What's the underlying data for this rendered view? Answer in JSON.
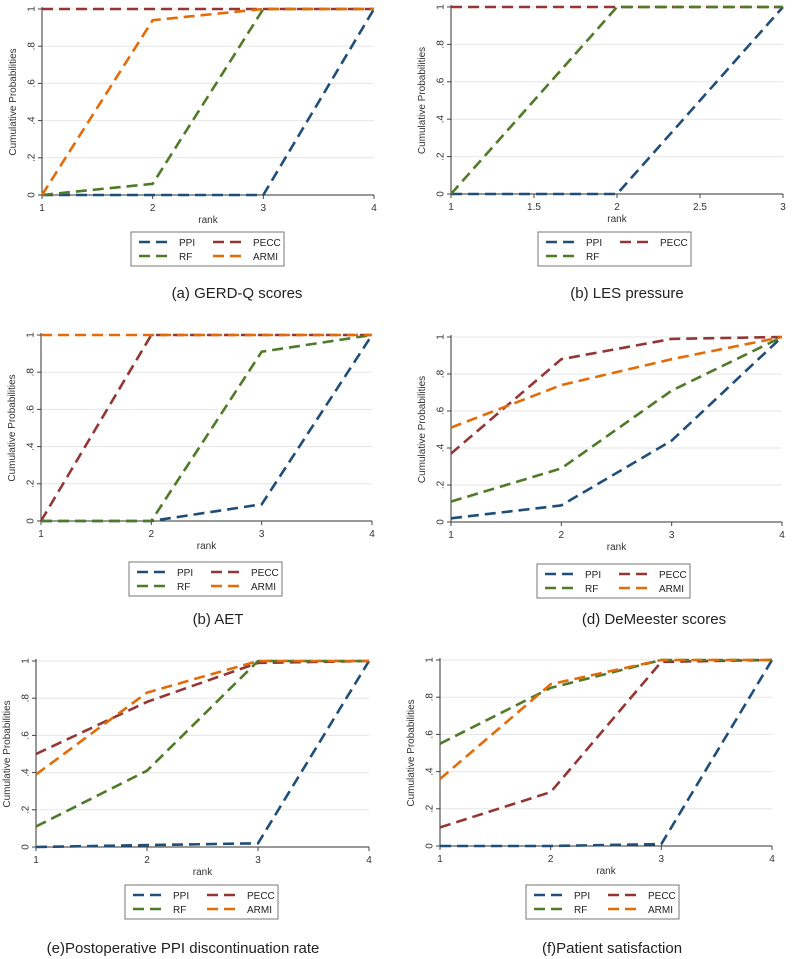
{
  "figure": {
    "legend_series": [
      "PPI",
      "PECC",
      "RF",
      "ARMI"
    ]
  },
  "chart_data": [
    {
      "type": "line",
      "caption": "(a)  GERD-Q scores",
      "xlabel": "rank",
      "ylabel": "Cumulative Probabilities",
      "x": [
        1,
        2,
        3,
        4
      ],
      "xticks": [
        "1",
        "2",
        "3",
        "4"
      ],
      "xlim": [
        1,
        4
      ],
      "ylim": [
        0,
        1
      ],
      "yticks": [
        "0",
        ".2",
        ".4",
        ".6",
        ".8",
        "1"
      ],
      "series": [
        {
          "name": "PPI",
          "color": "#1f4e79",
          "values": [
            0,
            0,
            0,
            1
          ]
        },
        {
          "name": "PECC",
          "color": "#943634",
          "values": [
            1,
            1,
            1,
            1
          ]
        },
        {
          "name": "RF",
          "color": "#4f7a28",
          "values": [
            0,
            0.06,
            1,
            1
          ]
        },
        {
          "name": "ARMI",
          "color": "#e36c09",
          "values": [
            0,
            0.94,
            1,
            1
          ]
        }
      ],
      "legend": [
        "PPI",
        "PECC",
        "RF",
        "ARMI"
      ]
    },
    {
      "type": "line",
      "caption": "(b) LES pressure",
      "xlabel": "rank",
      "ylabel": "Cumulative Probabilities",
      "x": [
        1,
        2,
        3
      ],
      "xticks": [
        "1",
        "1.5",
        "2",
        "2.5",
        "3"
      ],
      "xlim": [
        1,
        3
      ],
      "ylim": [
        0,
        1
      ],
      "yticks": [
        "0",
        ".2",
        ".4",
        ".6",
        ".8",
        "1"
      ],
      "series": [
        {
          "name": "PPI",
          "color": "#1f4e79",
          "values": [
            0,
            0,
            1
          ]
        },
        {
          "name": "PECC",
          "color": "#943634",
          "values": [
            1,
            1,
            1
          ]
        },
        {
          "name": "RF",
          "color": "#4f7a28",
          "values": [
            0,
            1,
            1
          ]
        }
      ],
      "legend": [
        "PPI",
        "PECC",
        "RF"
      ]
    },
    {
      "type": "line",
      "caption": "(b)  AET",
      "xlabel": "rank",
      "ylabel": "Cumulative Probabilities",
      "x": [
        1,
        2,
        3,
        4
      ],
      "xticks": [
        "1",
        "2",
        "3",
        "4"
      ],
      "xlim": [
        1,
        4
      ],
      "ylim": [
        0,
        1
      ],
      "yticks": [
        "0",
        ".2",
        ".4",
        ".6",
        ".8",
        "1"
      ],
      "series": [
        {
          "name": "PPI",
          "color": "#1f4e79",
          "values": [
            0,
            0,
            0.09,
            1
          ]
        },
        {
          "name": "PECC",
          "color": "#943634",
          "values": [
            0,
            1,
            1,
            1
          ]
        },
        {
          "name": "RF",
          "color": "#4f7a28",
          "values": [
            0,
            0,
            0.91,
            1
          ]
        },
        {
          "name": "ARMI",
          "color": "#e36c09",
          "values": [
            1,
            1,
            1,
            1
          ]
        }
      ],
      "legend": [
        "PPI",
        "PECC",
        "RF",
        "ARMI"
      ]
    },
    {
      "type": "line",
      "caption": "(d) DeMeester scores",
      "xlabel": "rank",
      "ylabel": "Cumulative Probabilities",
      "x": [
        1,
        2,
        3,
        4
      ],
      "xticks": [
        "1",
        "2",
        "3",
        "4"
      ],
      "xlim": [
        1,
        4
      ],
      "ylim": [
        0,
        1
      ],
      "yticks": [
        "0",
        ".2",
        ".4",
        ".6",
        ".8",
        "1"
      ],
      "series": [
        {
          "name": "PPI",
          "color": "#1f4e79",
          "values": [
            0.02,
            0.09,
            0.44,
            1
          ]
        },
        {
          "name": "PECC",
          "color": "#943634",
          "values": [
            0.37,
            0.88,
            0.99,
            1
          ]
        },
        {
          "name": "RF",
          "color": "#4f7a28",
          "values": [
            0.11,
            0.29,
            0.71,
            1
          ]
        },
        {
          "name": "ARMI",
          "color": "#e36c09",
          "values": [
            0.51,
            0.74,
            0.88,
            1
          ]
        }
      ],
      "legend": [
        "PPI",
        "PECC",
        "RF",
        "ARMI"
      ]
    },
    {
      "type": "line",
      "caption": "(e)Postoperative PPI discontinuation rate",
      "xlabel": "rank",
      "ylabel": "Cumulative Probabilities",
      "x": [
        1,
        2,
        3,
        4
      ],
      "xticks": [
        "1",
        "2",
        "3",
        "4"
      ],
      "xlim": [
        1,
        4
      ],
      "ylim": [
        0,
        1
      ],
      "yticks": [
        "0",
        ".2",
        ".4",
        ".6",
        ".8",
        "1"
      ],
      "series": [
        {
          "name": "PPI",
          "color": "#1f4e79",
          "values": [
            0,
            0.01,
            0.02,
            1
          ]
        },
        {
          "name": "PECC",
          "color": "#943634",
          "values": [
            0.5,
            0.78,
            0.99,
            1
          ]
        },
        {
          "name": "RF",
          "color": "#4f7a28",
          "values": [
            0.11,
            0.41,
            1,
            1
          ]
        },
        {
          "name": "ARMI",
          "color": "#e36c09",
          "values": [
            0.39,
            0.83,
            1,
            1
          ]
        }
      ],
      "legend": [
        "PPI",
        "PECC",
        "RF",
        "ARMI"
      ]
    },
    {
      "type": "line",
      "caption": "(f)Patient satisfaction",
      "xlabel": "rank",
      "ylabel": "Cumulative Probabilities",
      "x": [
        1,
        2,
        3,
        4
      ],
      "xticks": [
        "1",
        "2",
        "3",
        "4"
      ],
      "xlim": [
        1,
        4
      ],
      "ylim": [
        0,
        1
      ],
      "yticks": [
        "0",
        ".2",
        ".4",
        ".6",
        ".8",
        "1"
      ],
      "series": [
        {
          "name": "PPI",
          "color": "#1f4e79",
          "values": [
            0,
            0,
            0.01,
            1
          ]
        },
        {
          "name": "PECC",
          "color": "#943634",
          "values": [
            0.1,
            0.29,
            0.99,
            1
          ]
        },
        {
          "name": "RF",
          "color": "#4f7a28",
          "values": [
            0.55,
            0.85,
            1,
            1
          ]
        },
        {
          "name": "ARMI",
          "color": "#e36c09",
          "values": [
            0.36,
            0.87,
            1,
            1
          ]
        }
      ],
      "legend": [
        "PPI",
        "PECC",
        "RF",
        "ARMI"
      ]
    }
  ]
}
